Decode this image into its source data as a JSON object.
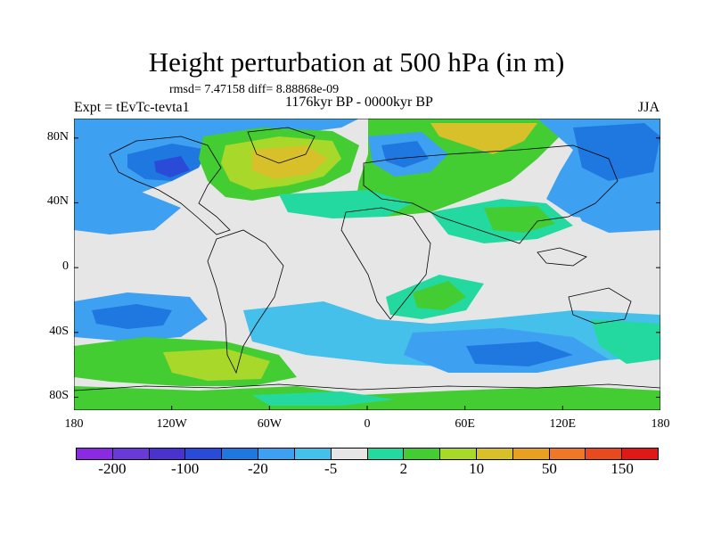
{
  "title": "Height perturbation at 500 hPa (in m)",
  "stats": "rmsd= 7.47158 diff= 8.88868e-09",
  "experiment": "Expt = tEvTc-tevta1",
  "period": "1176kyr BP - 0000kyr BP",
  "season": "JJA",
  "map": {
    "lat_labels": [
      "80N",
      "40N",
      "0",
      "40S",
      "80S"
    ],
    "lat_values": [
      80,
      40,
      0,
      -40,
      -80
    ],
    "lon_labels": [
      "180",
      "120W",
      "60W",
      "0",
      "60E",
      "120E",
      "180"
    ],
    "lon_values": [
      -180,
      -120,
      -60,
      0,
      60,
      120,
      180
    ]
  },
  "colorbar": {
    "colors": [
      "#8a2be2",
      "#6a3ad8",
      "#4a33cc",
      "#2a4bd7",
      "#1f78e0",
      "#3ea0f0",
      "#45c0ea",
      "#e6e6e6",
      "#24d9a0",
      "#44cc33",
      "#a8d82a",
      "#d8c02a",
      "#e8a020",
      "#ee7828",
      "#e84a20",
      "#e01818"
    ],
    "labels": [
      "-200",
      "-100",
      "-20",
      "-5",
      "2",
      "10",
      "50",
      "150"
    ]
  }
}
